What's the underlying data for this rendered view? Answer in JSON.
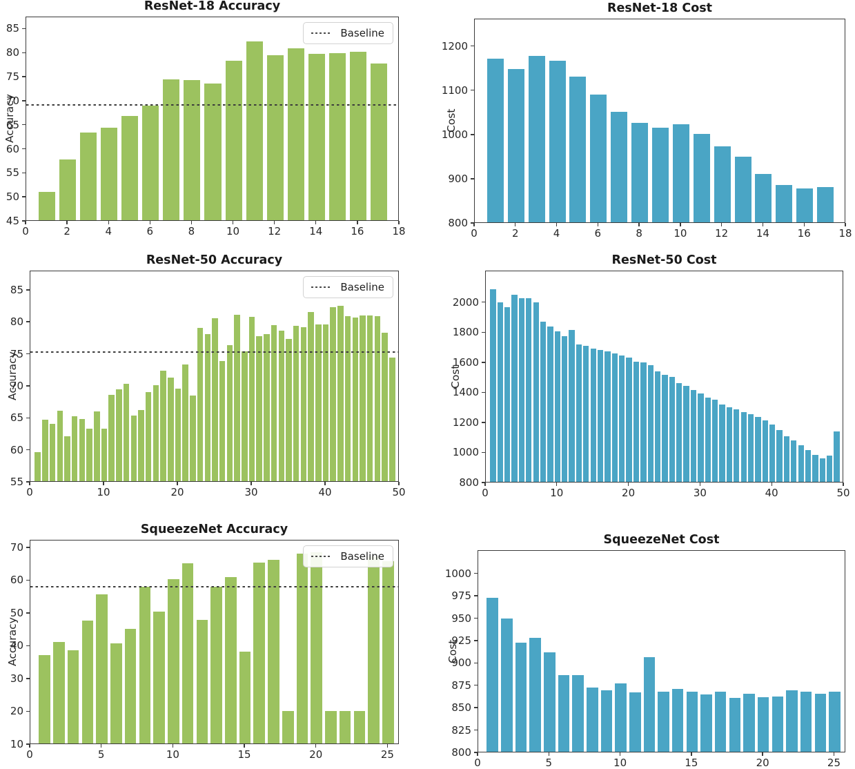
{
  "page": {
    "background": "#ffffff",
    "accent_green": "#9cc25f",
    "accent_blue": "#4aa5c5"
  },
  "legend": {
    "baseline_label": "Baseline"
  },
  "chart_data": [
    {
      "type": "bar",
      "title": "ResNet-18 Accuracy",
      "ylabel": "Accuracy",
      "bar_color": "#9cc25f",
      "x": [
        1,
        2,
        3,
        4,
        5,
        6,
        7,
        8,
        9,
        10,
        11,
        12,
        13,
        14,
        15,
        16,
        17
      ],
      "values": [
        50.9,
        57.6,
        63.3,
        64.2,
        66.7,
        68.8,
        74.3,
        74.1,
        73.5,
        78.1,
        82.2,
        79.3,
        80.8,
        79.6,
        79.8,
        80.1,
        77.6
      ],
      "baseline": 69.0,
      "legend": "Baseline",
      "legend_position": "upper right",
      "xlim": [
        0,
        18
      ],
      "ylim": [
        45,
        87.5
      ],
      "xticks": [
        0,
        2,
        4,
        6,
        8,
        10,
        12,
        14,
        16,
        18
      ],
      "yticks": [
        45,
        50,
        55,
        60,
        65,
        70,
        75,
        80,
        85
      ],
      "grid": false
    },
    {
      "type": "bar",
      "title": "ResNet-18 Cost",
      "ylabel": "Cost",
      "bar_color": "#4aa5c5",
      "x": [
        1,
        2,
        3,
        4,
        5,
        6,
        7,
        8,
        9,
        10,
        11,
        12,
        13,
        14,
        15,
        16,
        17
      ],
      "values": [
        1170,
        1146,
        1176,
        1165,
        1130,
        1088,
        1050,
        1025,
        1014,
        1022,
        1000,
        972,
        948,
        910,
        884,
        876,
        880
      ],
      "baseline": null,
      "legend": null,
      "xlim": [
        0,
        18
      ],
      "ylim": [
        800,
        1262
      ],
      "xticks": [
        0,
        2,
        4,
        6,
        8,
        10,
        12,
        14,
        16,
        18
      ],
      "yticks": [
        800,
        900,
        1000,
        1100,
        1200
      ],
      "grid": false
    },
    {
      "type": "bar",
      "title": "ResNet-50 Accuracy",
      "ylabel": "Accuracy",
      "bar_color": "#9cc25f",
      "x": [
        1,
        2,
        3,
        4,
        5,
        6,
        7,
        8,
        9,
        10,
        11,
        12,
        13,
        14,
        15,
        16,
        17,
        18,
        19,
        20,
        21,
        22,
        23,
        24,
        25,
        26,
        27,
        28,
        29,
        30,
        31,
        32,
        33,
        34,
        35,
        36,
        37,
        38,
        39,
        40,
        41,
        42,
        43,
        44,
        45,
        46,
        47,
        48,
        49
      ],
      "values": [
        59.5,
        64.6,
        64.0,
        66.0,
        62.0,
        65.1,
        64.7,
        63.2,
        65.9,
        63.2,
        68.5,
        69.3,
        70.2,
        65.2,
        66.1,
        68.9,
        70.0,
        72.3,
        71.2,
        69.4,
        73.2,
        68.4,
        78.9,
        78.0,
        80.4,
        73.8,
        76.2,
        81.0,
        75.3,
        80.7,
        77.6,
        78.0,
        79.4,
        78.5,
        77.2,
        79.3,
        79.1,
        81.4,
        79.5,
        79.5,
        82.2,
        82.4,
        80.8,
        80.6,
        80.9,
        80.9,
        80.8,
        78.2,
        74.3
      ],
      "baseline": 75.2,
      "legend": "Baseline",
      "legend_position": "upper right",
      "xlim": [
        0,
        50
      ],
      "ylim": [
        55,
        88
      ],
      "xticks": [
        0,
        10,
        20,
        30,
        40,
        50
      ],
      "yticks": [
        55,
        60,
        65,
        70,
        75,
        80,
        85
      ],
      "grid": false
    },
    {
      "type": "bar",
      "title": "ResNet-50 Cost",
      "ylabel": "Cost",
      "bar_color": "#4aa5c5",
      "x": [
        1,
        2,
        3,
        4,
        5,
        6,
        7,
        8,
        9,
        10,
        11,
        12,
        13,
        14,
        15,
        16,
        17,
        18,
        19,
        20,
        21,
        22,
        23,
        24,
        25,
        26,
        27,
        28,
        29,
        30,
        31,
        32,
        33,
        34,
        35,
        36,
        37,
        38,
        39,
        40,
        41,
        42,
        43,
        44,
        45,
        46,
        47,
        48,
        49
      ],
      "values": [
        2080,
        1994,
        1961,
        2046,
        2023,
        2023,
        1994,
        1867,
        1834,
        1801,
        1768,
        1810,
        1716,
        1706,
        1687,
        1678,
        1668,
        1654,
        1640,
        1626,
        1600,
        1593,
        1574,
        1536,
        1513,
        1499,
        1456,
        1437,
        1409,
        1390,
        1362,
        1348,
        1315,
        1296,
        1282,
        1263,
        1249,
        1230,
        1211,
        1183,
        1145,
        1102,
        1074,
        1045,
        1012,
        980,
        958,
        976,
        1135
      ],
      "baseline": null,
      "legend": null,
      "xlim": [
        0,
        50
      ],
      "ylim": [
        800,
        2210
      ],
      "xticks": [
        0,
        10,
        20,
        30,
        40,
        50
      ],
      "yticks": [
        800,
        1000,
        1200,
        1400,
        1600,
        1800,
        2000
      ],
      "grid": false
    },
    {
      "type": "bar",
      "title": "SqueezeNet Accuracy",
      "ylabel": "Accuracy",
      "bar_color": "#9cc25f",
      "x": [
        1,
        2,
        3,
        4,
        5,
        6,
        7,
        8,
        9,
        10,
        11,
        12,
        13,
        14,
        15,
        16,
        17,
        18,
        19,
        20,
        21,
        22,
        23,
        24,
        25
      ],
      "values": [
        37.0,
        41.0,
        38.5,
        47.5,
        55.5,
        40.5,
        45.0,
        57.8,
        50.2,
        60.0,
        65.0,
        47.6,
        57.8,
        60.8,
        38.0,
        65.2,
        66.0,
        20.0,
        67.8,
        68.3,
        20.0,
        20.0,
        20.0,
        67.0,
        65.6
      ],
      "baseline": 57.8,
      "legend": "Baseline",
      "legend_position": "upper right",
      "xlim": [
        0,
        25.8
      ],
      "ylim": [
        10,
        72.3
      ],
      "xticks": [
        0,
        5,
        10,
        15,
        20,
        25
      ],
      "yticks": [
        10,
        20,
        30,
        40,
        50,
        60,
        70
      ],
      "grid": false
    },
    {
      "type": "bar",
      "title": "SqueezeNet Cost",
      "ylabel": "Cost",
      "bar_color": "#4aa5c5",
      "x": [
        1,
        2,
        3,
        4,
        5,
        6,
        7,
        8,
        9,
        10,
        11,
        12,
        13,
        14,
        15,
        16,
        17,
        18,
        19,
        20,
        21,
        22,
        23,
        24,
        25
      ],
      "values": [
        972,
        949,
        922,
        927,
        911,
        886,
        886,
        872,
        869,
        876,
        866,
        906,
        867,
        870,
        867,
        864,
        867,
        860,
        865,
        861,
        862,
        869,
        867,
        865,
        867
      ],
      "baseline": null,
      "legend": null,
      "xlim": [
        0,
        25.8
      ],
      "ylim": [
        800,
        1026
      ],
      "xticks": [
        0,
        5,
        10,
        15,
        20,
        25
      ],
      "yticks": [
        800,
        825,
        850,
        875,
        900,
        925,
        950,
        975,
        1000
      ],
      "grid": false
    }
  ]
}
